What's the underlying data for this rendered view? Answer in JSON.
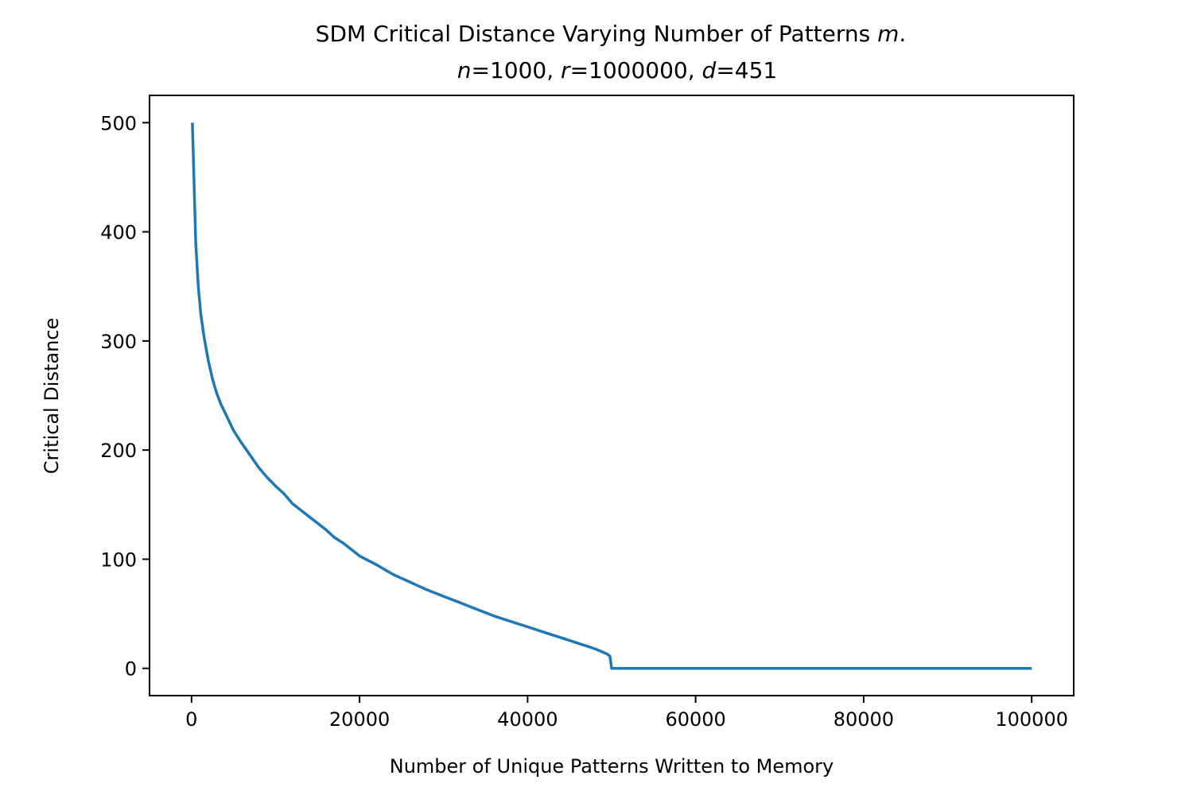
{
  "chart_data": {
    "type": "line",
    "title": {
      "line1_prefix": "SDM Critical Distance Varying Number of Patterns ",
      "line1_var": "m",
      "line1_suffix": ".",
      "n_var": "n",
      "n_val": "1000",
      "r_var": "r",
      "r_val": "1000000",
      "d_var": "d",
      "d_val": "451",
      "eq": "=",
      "sep": ", "
    },
    "xlabel": "Number of Unique Patterns Written to Memory",
    "ylabel": "Critical Distance",
    "xlim": [
      -5000,
      105000
    ],
    "ylim": [
      -25,
      525
    ],
    "x_ticks": [
      0,
      20000,
      40000,
      60000,
      80000,
      100000
    ],
    "x_tick_labels": [
      "0",
      "20000",
      "40000",
      "60000",
      "80000",
      "100000"
    ],
    "y_ticks": [
      0,
      100,
      200,
      300,
      400,
      500
    ],
    "y_tick_labels": [
      "0",
      "100",
      "200",
      "300",
      "400",
      "500"
    ],
    "grid": false,
    "series": [
      {
        "color": "#1f77b4",
        "x": [
          100,
          500,
          800,
          1100,
          1500,
          2000,
          2500,
          3000,
          3500,
          4000,
          5000,
          6000,
          7000,
          8000,
          9000,
          10000,
          11000,
          12000,
          14000,
          16000,
          17000,
          18000,
          20000,
          22000,
          24000,
          26000,
          28000,
          30000,
          32000,
          34000,
          36000,
          38000,
          40000,
          42000,
          44000,
          46000,
          48000,
          49500,
          49800,
          50000,
          60000,
          70000,
          80000,
          90000,
          100000
        ],
        "y": [
          500,
          390,
          350,
          325,
          303,
          282,
          265,
          252,
          242,
          234,
          218,
          206,
          195,
          184,
          175,
          167,
          160,
          151,
          139,
          127,
          120,
          115,
          103,
          95,
          86,
          79,
          72,
          66,
          60,
          54,
          48,
          43,
          38,
          33,
          28,
          23,
          18,
          13,
          11,
          0,
          0,
          0,
          0,
          0,
          0
        ]
      }
    ]
  }
}
